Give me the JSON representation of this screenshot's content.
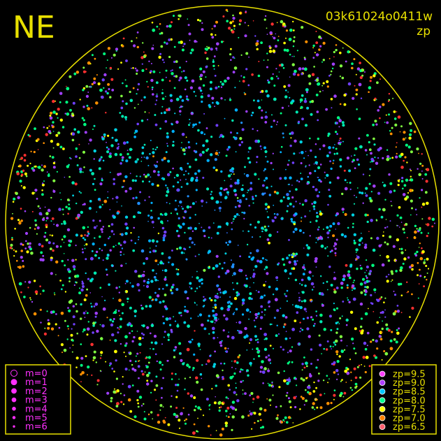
{
  "header": {
    "direction": "NE",
    "frame_id": "03k61024o0411w",
    "mode": "zp"
  },
  "magnitude_legend": {
    "items": [
      "m=0",
      "m=1",
      "m=2",
      "m=3",
      "m=4",
      "m=5",
      "m=6"
    ],
    "color": "#ff30ff"
  },
  "zp_legend": {
    "items": [
      {
        "label": "zp=9.5",
        "color": "#ff40ff"
      },
      {
        "label": "zp=9.0",
        "color": "#b040ff"
      },
      {
        "label": "zp=8.5",
        "color": "#00c8ff"
      },
      {
        "label": "zp=8.0",
        "color": "#00ff90"
      },
      {
        "label": "zp=7.5",
        "color": "#ffff00"
      },
      {
        "label": "zp=7.0",
        "color": "#ff8000"
      },
      {
        "label": "zp=6.5",
        "color": "#ff6070"
      }
    ]
  }
}
